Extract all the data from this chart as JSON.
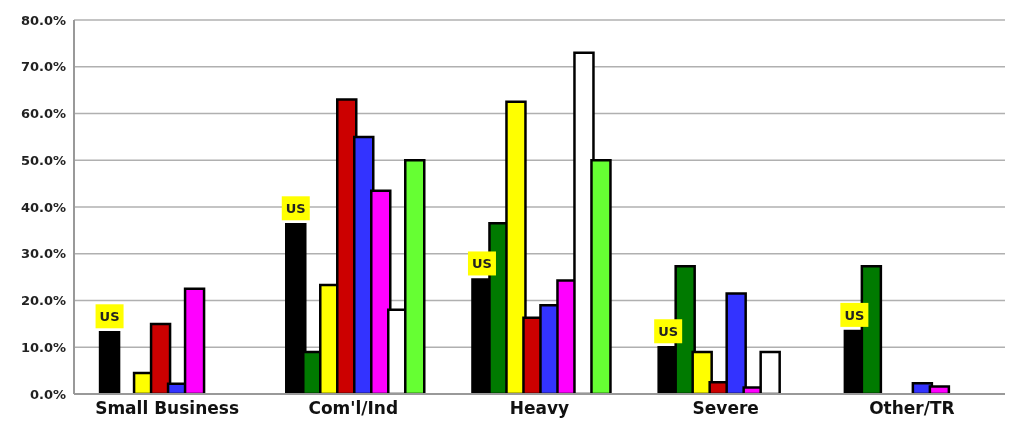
{
  "chart_data": {
    "type": "bar",
    "categories": [
      "Small Business",
      "Com'l/Ind",
      "Heavy",
      "Severe",
      "Other/TR"
    ],
    "series": [
      {
        "color": "#000000",
        "values": [
          13.2,
          36.3,
          24.5,
          10,
          13.5
        ]
      },
      {
        "color": "#007a00",
        "values": [
          null,
          9,
          36.5,
          27.3,
          27.3
        ]
      },
      {
        "color": "#ffff00",
        "values": [
          4.5,
          23.3,
          62.5,
          9,
          null
        ]
      },
      {
        "color": "#cc0000",
        "values": [
          15,
          63,
          16.3,
          2.5,
          null
        ]
      },
      {
        "color": "#3333ff",
        "values": [
          2.2,
          55,
          19,
          21.5,
          2.3
        ]
      },
      {
        "color": "#ff00ff",
        "values": [
          22.5,
          43.5,
          24.3,
          1.4,
          1.6
        ]
      },
      {
        "color": "#ffffff",
        "values": [
          null,
          18,
          73,
          9,
          null
        ]
      },
      {
        "color": "#66ff33",
        "values": [
          null,
          50,
          50,
          null,
          null
        ]
      }
    ],
    "ylim": [
      0,
      80
    ],
    "yticks": [
      {
        "value": 0,
        "label": "0.0%"
      },
      {
        "value": 10,
        "label": "10.0%"
      },
      {
        "value": 20,
        "label": "20.0%"
      },
      {
        "value": 30,
        "label": "30.0%"
      },
      {
        "value": 40,
        "label": "40.0%"
      },
      {
        "value": 50,
        "label": "50.0%"
      },
      {
        "value": 60,
        "label": "60.0%"
      },
      {
        "value": 70,
        "label": "70.0%"
      },
      {
        "value": 80,
        "label": "80.0%"
      }
    ],
    "grid": "y",
    "legend": false,
    "annotations": [
      "US",
      "US",
      "US",
      "US",
      "US"
    ]
  }
}
